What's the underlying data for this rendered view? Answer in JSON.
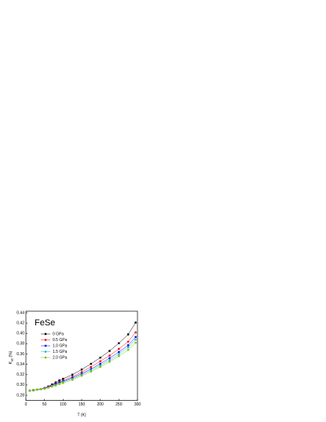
{
  "chart_data": {
    "type": "line",
    "annotation": "FeSe",
    "x_label": "T (K)",
    "y_label": "K",
    "y_label_sub": "ab",
    "y_label_unit": "(%)",
    "x": [
      10,
      20,
      30,
      40,
      50,
      60,
      70,
      80,
      90,
      100,
      125,
      150,
      175,
      200,
      225,
      250,
      275,
      295
    ],
    "series": [
      {
        "name": "0 GPa",
        "color": "#000000",
        "values": [
          0.289,
          0.29,
          0.291,
          0.292,
          0.294,
          0.297,
          0.301,
          0.305,
          0.309,
          0.312,
          0.32,
          0.33,
          0.341,
          0.353,
          0.366,
          0.381,
          0.398,
          0.421
        ]
      },
      {
        "name": "0.5 GPa",
        "color": "#ff0000",
        "values": [
          0.289,
          0.29,
          0.291,
          0.292,
          0.294,
          0.297,
          0.3,
          0.303,
          0.306,
          0.309,
          0.316,
          0.325,
          0.335,
          0.346,
          0.357,
          0.37,
          0.384,
          0.402
        ]
      },
      {
        "name": "1.0 GPa",
        "color": "#0000ff",
        "values": [
          0.289,
          0.29,
          0.291,
          0.292,
          0.294,
          0.296,
          0.299,
          0.302,
          0.305,
          0.307,
          0.314,
          0.322,
          0.331,
          0.341,
          0.352,
          0.364,
          0.377,
          0.393
        ]
      },
      {
        "name": "1.5 GPa",
        "color": "#00c0c0",
        "values": [
          0.289,
          0.29,
          0.291,
          0.292,
          0.293,
          0.295,
          0.298,
          0.3,
          0.303,
          0.306,
          0.312,
          0.32,
          0.329,
          0.338,
          0.348,
          0.36,
          0.373,
          0.388
        ]
      },
      {
        "name": "2.0 GPa",
        "color": "#80c000",
        "values": [
          0.289,
          0.29,
          0.291,
          0.292,
          0.293,
          0.295,
          0.297,
          0.299,
          0.302,
          0.304,
          0.31,
          0.318,
          0.326,
          0.335,
          0.345,
          0.356,
          0.368,
          0.382
        ]
      }
    ],
    "xlim": [
      0,
      300
    ],
    "xticks": [
      0,
      50,
      100,
      150,
      200,
      250,
      300
    ],
    "ylim": [
      0.27,
      0.44
    ],
    "yticks": [
      0.28,
      {
        "value": 0.3,
        "label": "0.30"
      },
      0.32,
      0.34,
      0.36,
      0.38,
      {
        "value": 0.4,
        "label": "0.40"
      },
      0.42,
      0.44
    ],
    "legend": "upper left"
  }
}
